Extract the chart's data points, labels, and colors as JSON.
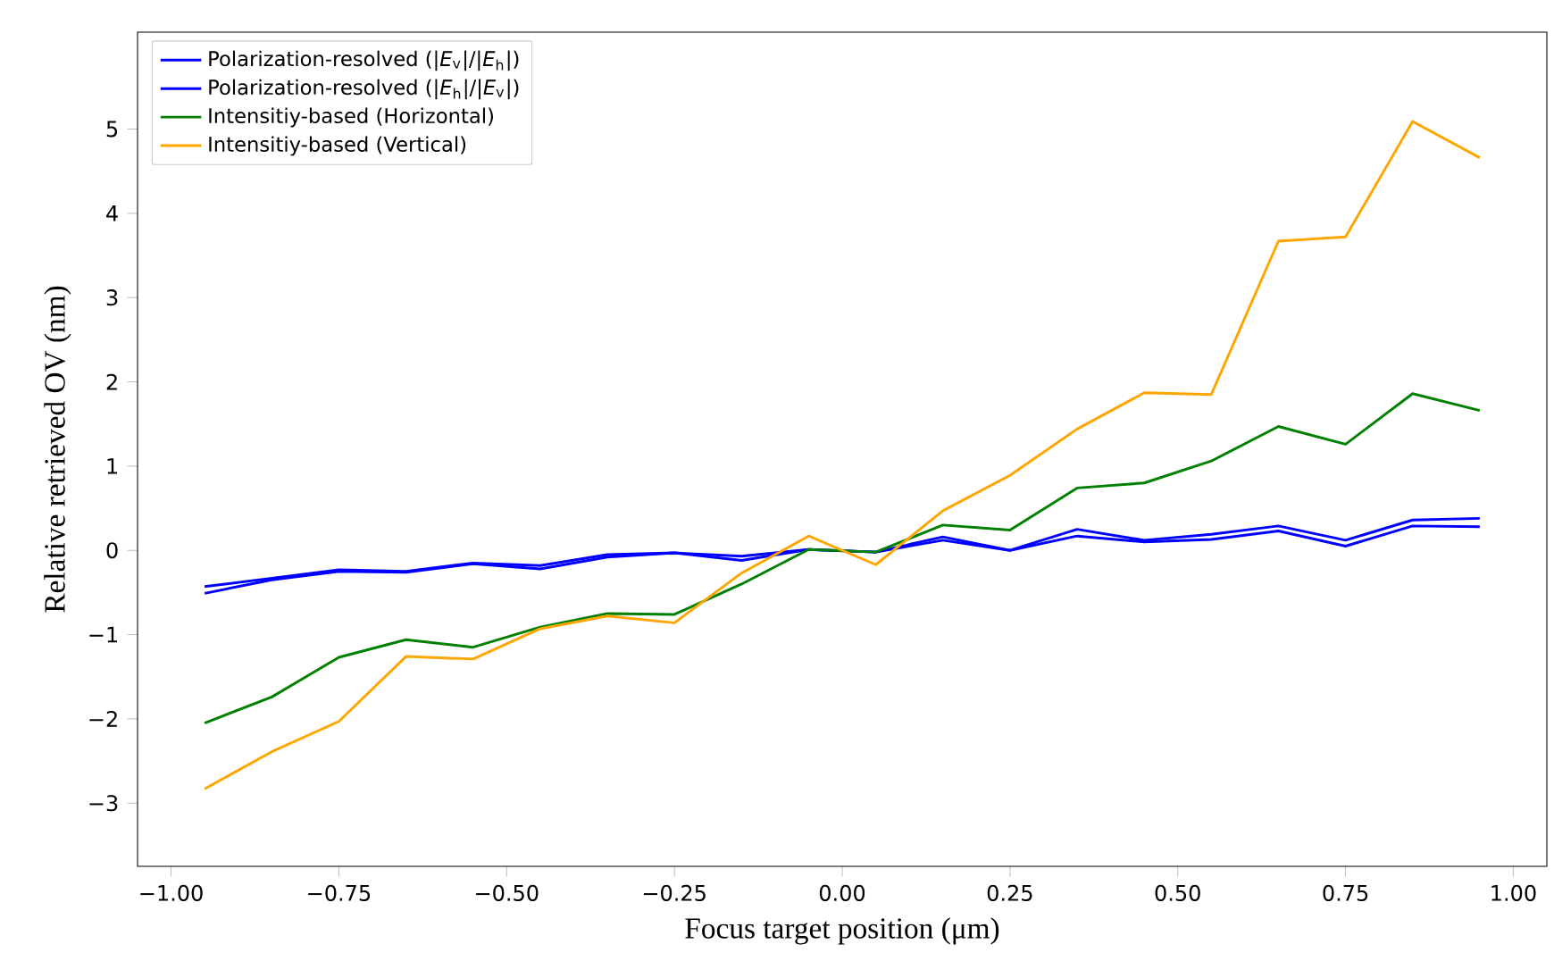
{
  "chart_data": {
    "type": "line",
    "xlabel": "Focus target position (μm)",
    "ylabel": "Relative retrieved OV (nm)",
    "x": [
      -0.95,
      -0.85,
      -0.75,
      -0.65,
      -0.55,
      -0.45,
      -0.35,
      -0.25,
      -0.15,
      -0.05,
      0.05,
      0.15,
      0.25,
      0.35,
      0.45,
      0.55,
      0.65,
      0.75,
      0.85,
      0.95
    ],
    "series": [
      {
        "name": "Polarization-resolved (|*E*$_{v}$|/|*E*$_{h}$|)",
        "color": "#0000ff",
        "values": [
          -0.43,
          -0.33,
          -0.23,
          -0.25,
          -0.15,
          -0.18,
          -0.05,
          -0.03,
          -0.07,
          0.01,
          -0.02,
          0.16,
          0.0,
          0.25,
          0.12,
          0.19,
          0.29,
          0.12,
          0.36,
          0.38
        ]
      },
      {
        "name": "Polarization-resolved (|*E*$_{h}$|/|*E*$_{v}$|)",
        "color": "#0000ff",
        "values": [
          -0.51,
          -0.35,
          -0.25,
          -0.26,
          -0.16,
          -0.22,
          -0.08,
          -0.03,
          -0.12,
          0.01,
          -0.02,
          0.12,
          0.0,
          0.17,
          0.1,
          0.13,
          0.23,
          0.05,
          0.29,
          0.28
        ]
      },
      {
        "name": "Intensitiy-based (Horizontal)",
        "color": "#008000",
        "values": [
          -2.05,
          -1.74,
          -1.27,
          -1.06,
          -1.15,
          -0.91,
          -0.75,
          -0.76,
          -0.4,
          0.01,
          -0.02,
          0.3,
          0.24,
          0.74,
          0.8,
          1.06,
          1.47,
          1.26,
          1.86,
          1.66
        ]
      },
      {
        "name": "Intensitiy-based (Vertical)",
        "color": "#ffa500",
        "values": [
          -2.83,
          -2.39,
          -2.03,
          -1.26,
          -1.29,
          -0.93,
          -0.78,
          -0.86,
          -0.27,
          0.17,
          -0.17,
          0.47,
          0.89,
          1.44,
          1.87,
          1.85,
          3.67,
          3.72,
          5.09,
          4.66
        ]
      }
    ],
    "xlim": [
      -1.05,
      1.05
    ],
    "ylim": [
      -3.75,
      6.15
    ],
    "xticks": [
      {
        "value": -1.0,
        "label": "−1.00"
      },
      {
        "value": -0.75,
        "label": "−0.75"
      },
      {
        "value": -0.5,
        "label": "−0.50"
      },
      {
        "value": -0.25,
        "label": "−0.25"
      },
      {
        "value": 0.0,
        "label": "0.00"
      },
      {
        "value": 0.25,
        "label": "0.25"
      },
      {
        "value": 0.5,
        "label": "0.50"
      },
      {
        "value": 0.75,
        "label": "0.75"
      },
      {
        "value": 1.0,
        "label": "1.00"
      }
    ],
    "yticks": [
      {
        "value": -3,
        "label": "−3"
      },
      {
        "value": -2,
        "label": "−2"
      },
      {
        "value": -1,
        "label": "−1"
      },
      0,
      1,
      2,
      3,
      4,
      5
    ],
    "legend": "top left",
    "grid": false,
    "marker": "none",
    "line_style": "solid"
  }
}
